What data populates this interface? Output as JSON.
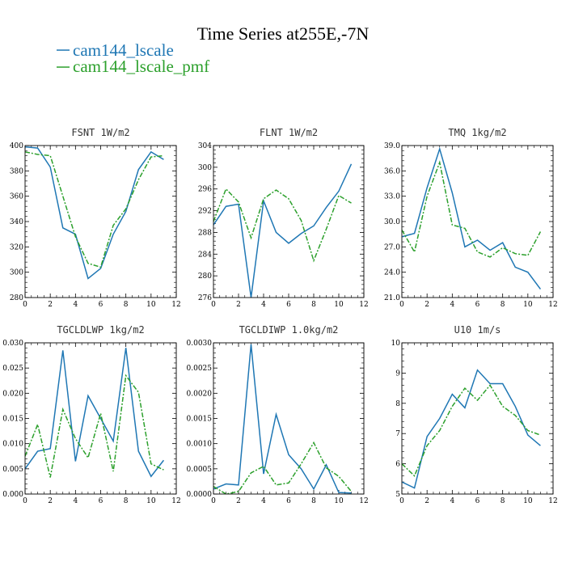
{
  "title": "Time Series at255E,-7N",
  "legend": [
    {
      "name": "cam144_lscale",
      "color": "#1f77b4"
    },
    {
      "name": "cam144_lscale_pmf",
      "color": "#2ca02c"
    }
  ],
  "chart_data": [
    {
      "type": "line",
      "title": "FSNT   1W/m2",
      "x": [
        0,
        1,
        2,
        3,
        4,
        5,
        6,
        7,
        8,
        9,
        10,
        11
      ],
      "xlim": [
        0,
        12
      ],
      "ylim": [
        280,
        400
      ],
      "xticks": [
        0,
        2,
        4,
        6,
        8,
        10,
        12
      ],
      "yticks": [
        280,
        300,
        320,
        340,
        360,
        380,
        400
      ],
      "ytick_labels": [
        "280",
        "300",
        "320",
        "340",
        "360",
        "380",
        "400"
      ],
      "series": [
        {
          "name": "cam144_lscale",
          "values": [
            399,
            398,
            383,
            335,
            330,
            295,
            303,
            330,
            348,
            381,
            395,
            389
          ]
        },
        {
          "name": "cam144_lscale_pmf",
          "values": [
            395,
            393,
            392,
            360,
            328,
            307,
            304,
            337,
            350,
            373,
            391,
            392
          ]
        }
      ]
    },
    {
      "type": "line",
      "title": "FLNT   1W/m2",
      "x": [
        0,
        1,
        2,
        3,
        4,
        5,
        6,
        7,
        8,
        9,
        10,
        11
      ],
      "xlim": [
        0,
        12
      ],
      "ylim": [
        276,
        304
      ],
      "xticks": [
        0,
        2,
        4,
        6,
        8,
        10,
        12
      ],
      "yticks": [
        276,
        280,
        284,
        288,
        292,
        296,
        300,
        304
      ],
      "ytick_labels": [
        "276",
        "280",
        "284",
        "288",
        "292",
        "296",
        "300",
        "304"
      ],
      "series": [
        {
          "name": "cam144_lscale",
          "values": [
            289.4,
            292.8,
            293.2,
            276.0,
            293.8,
            288.0,
            286.0,
            287.8,
            289.2,
            292.6,
            295.6,
            300.6
          ]
        },
        {
          "name": "cam144_lscale_pmf",
          "values": [
            290.0,
            296.0,
            293.6,
            287.0,
            294.2,
            295.8,
            294.2,
            290.2,
            282.8,
            288.6,
            294.8,
            293.4
          ]
        }
      ]
    },
    {
      "type": "line",
      "title": "TMQ   1kg/m2",
      "x": [
        0,
        1,
        2,
        3,
        4,
        5,
        6,
        7,
        8,
        9,
        10,
        11
      ],
      "xlim": [
        0,
        12
      ],
      "ylim": [
        21,
        39
      ],
      "xticks": [
        0,
        2,
        4,
        6,
        8,
        10,
        12
      ],
      "yticks": [
        21,
        24,
        27,
        30,
        33,
        36,
        39
      ],
      "ytick_labels": [
        "21.0",
        "24.0",
        "27.0",
        "30.0",
        "33.0",
        "36.0",
        "39.0"
      ],
      "series": [
        {
          "name": "cam144_lscale",
          "values": [
            28.2,
            28.6,
            34.0,
            38.6,
            33.4,
            27.0,
            27.8,
            26.6,
            27.5,
            24.6,
            24.0,
            22.0
          ]
        },
        {
          "name": "cam144_lscale_pmf",
          "values": [
            29.0,
            26.4,
            33.0,
            37.0,
            29.6,
            29.2,
            26.4,
            25.8,
            26.9,
            26.2,
            26.0,
            28.8
          ]
        }
      ]
    },
    {
      "type": "line",
      "title": "TGCLDLWP   1kg/m2",
      "x": [
        0,
        1,
        2,
        3,
        4,
        5,
        6,
        7,
        8,
        9,
        10,
        11
      ],
      "xlim": [
        0,
        12
      ],
      "ylim": [
        0,
        0.03
      ],
      "xticks": [
        0,
        2,
        4,
        6,
        8,
        10,
        12
      ],
      "yticks": [
        0,
        0.005,
        0.01,
        0.015,
        0.02,
        0.025,
        0.03
      ],
      "ytick_labels": [
        "0.000",
        "0.005",
        "0.010",
        "0.015",
        "0.020",
        "0.025",
        "0.030"
      ],
      "series": [
        {
          "name": "cam144_lscale",
          "values": [
            0.005,
            0.0085,
            0.009,
            0.0285,
            0.0065,
            0.0195,
            0.015,
            0.0105,
            0.029,
            0.0085,
            0.0035,
            0.0067
          ]
        },
        {
          "name": "cam144_lscale_pmf",
          "values": [
            0.0075,
            0.0138,
            0.0033,
            0.0168,
            0.011,
            0.0072,
            0.016,
            0.0045,
            0.0235,
            0.0202,
            0.006,
            0.0048
          ]
        }
      ]
    },
    {
      "type": "line",
      "title": "TGCLDIWP   1.0kg/m2",
      "x": [
        0,
        1,
        2,
        3,
        4,
        5,
        6,
        7,
        8,
        9,
        10,
        11
      ],
      "xlim": [
        0,
        12
      ],
      "ylim": [
        0,
        0.003
      ],
      "xticks": [
        0,
        2,
        4,
        6,
        8,
        10,
        12
      ],
      "yticks": [
        0,
        0.0005,
        0.001,
        0.0015,
        0.002,
        0.0025,
        0.003
      ],
      "ytick_labels": [
        "0.0000",
        "0.0005",
        "0.0010",
        "0.0015",
        "0.0020",
        "0.0025",
        "0.0030"
      ],
      "series": [
        {
          "name": "cam144_lscale",
          "values": [
            0.0001,
            0.0002,
            0.00018,
            0.00297,
            0.0004,
            0.00158,
            0.00078,
            0.0005,
            0.0001,
            0.00058,
            3e-05,
            2e-05
          ]
        },
        {
          "name": "cam144_lscale_pmf",
          "values": [
            0.00015,
            0.0,
            5e-05,
            0.00042,
            0.00055,
            0.00018,
            0.00022,
            0.0006,
            0.00102,
            0.00052,
            0.00035,
            5e-05
          ]
        }
      ]
    },
    {
      "type": "line",
      "title": "U10   1m/s",
      "x": [
        0,
        1,
        2,
        3,
        4,
        5,
        6,
        7,
        8,
        9,
        10,
        11
      ],
      "xlim": [
        0,
        12
      ],
      "ylim": [
        5,
        10
      ],
      "xticks": [
        0,
        2,
        4,
        6,
        8,
        10,
        12
      ],
      "yticks": [
        5,
        6,
        7,
        8,
        9,
        10
      ],
      "ytick_labels": [
        "5",
        "6",
        "7",
        "8",
        "9",
        "10"
      ],
      "series": [
        {
          "name": "cam144_lscale",
          "values": [
            5.4,
            5.2,
            6.9,
            7.5,
            8.3,
            7.85,
            9.1,
            8.65,
            8.65,
            7.9,
            6.95,
            6.6
          ]
        },
        {
          "name": "cam144_lscale_pmf",
          "values": [
            6.0,
            5.6,
            6.6,
            7.1,
            7.9,
            8.5,
            8.1,
            8.6,
            7.9,
            7.6,
            7.1,
            6.95
          ]
        }
      ]
    }
  ]
}
